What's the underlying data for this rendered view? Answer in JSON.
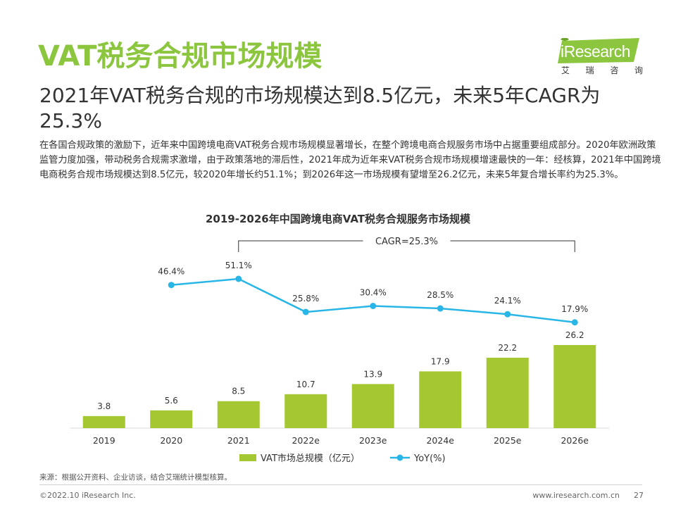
{
  "page": {
    "title": "VAT税务合规市场规模",
    "subtitle": "2021年VAT税务合规的市场规模达到8.5亿元，未来5年CAGR为25.3%",
    "body": "在各国合规政策的激励下，近年来中国跨境电商VAT税务合规市场规模显著增长，在整个跨境电商合规服务市场中占据重要组成部分。2020年欧洲政策监管力度加强，带动税务合规需求激增，由于政策落地的滞后性，2021年成为近年来VAT税务合规市场规模增速最快的一年：经核算，2021年中国跨境电商税务合规市场规模达到8.5亿元，较2020年增长约51.1%；到2026年这一市场规模有望增至26.2亿元，未来5年复合增长率约为25.3%。"
  },
  "logo": {
    "brand": "iResearch",
    "sub_chars": [
      "艾",
      "瑞",
      "咨",
      "询"
    ],
    "color": "#8cc63f"
  },
  "chart_data": {
    "type": "bar",
    "title": "2019-2026年中国跨境电商VAT税务合规服务市场规模",
    "categories": [
      "2019",
      "2020",
      "2021",
      "2022e",
      "2023e",
      "2024e",
      "2025e",
      "2026e"
    ],
    "series": [
      {
        "name": "VAT市场总规模（亿元）",
        "type": "bar",
        "color": "#a5c832",
        "values": [
          3.8,
          5.6,
          8.5,
          10.7,
          13.9,
          17.9,
          22.2,
          26.2
        ],
        "labels": [
          "3.8",
          "5.6",
          "8.5",
          "10.7",
          "13.9",
          "17.9",
          "22.2",
          "26.2"
        ]
      },
      {
        "name": "YoY(%)",
        "type": "line",
        "color": "#29b6e6",
        "x": [
          "2020",
          "2021",
          "2022e",
          "2023e",
          "2024e",
          "2025e",
          "2026e"
        ],
        "values": [
          46.4,
          51.1,
          25.8,
          30.4,
          28.5,
          24.1,
          17.9
        ],
        "labels": [
          "46.4%",
          "51.1%",
          "25.8%",
          "30.4%",
          "28.5%",
          "24.1%",
          "17.9%"
        ]
      }
    ],
    "annotation": {
      "text": "CAGR=25.3%",
      "from": "2021",
      "to": "2026e"
    },
    "legend_position": "bottom",
    "grid": false
  },
  "footer": {
    "source": "来源：根据公开资料、企业访谈，结合艾瑞统计模型核算。",
    "copyright": "©2022.10 iResearch Inc.",
    "site": "www.iresearch.com.cn",
    "page_number": "27"
  }
}
